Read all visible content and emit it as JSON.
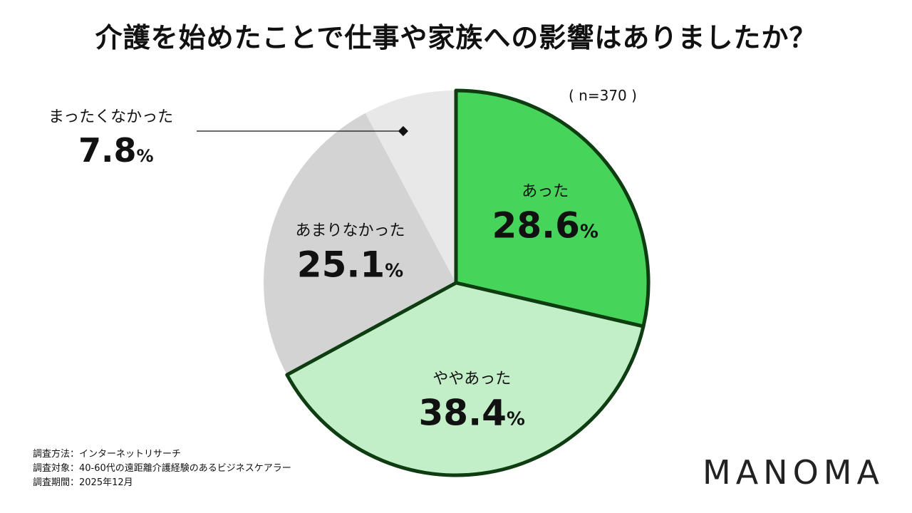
{
  "title": "介護を始めたことで仕事や家族への影響はありましたか？",
  "sample": "( n=370 )",
  "percent_unit": "%",
  "colors": {
    "atta": "#46d45a",
    "yaya": "#c2efc7",
    "amari": "#d3d3d3",
    "mattaku": "#e8e8e8",
    "outline": "#0f3d12"
  },
  "chart_data": {
    "type": "pie",
    "title": "介護を始めたことで仕事や家族への影響はありましたか？",
    "slices": [
      {
        "label": "あった",
        "value": 28.6,
        "display": "28.6"
      },
      {
        "label": "ややあった",
        "value": 38.4,
        "display": "38.4"
      },
      {
        "label": "あまりなかった",
        "value": 25.1,
        "display": "25.1"
      },
      {
        "label": "まったくなかった",
        "value": 7.8,
        "display": "7.8"
      }
    ]
  },
  "footer": {
    "method": "調査方法：インターネットリサーチ",
    "target": "調査対象：40-60代の遠距離介護経験のあるビジネスケアラー",
    "period": "調査期間：2025年12月"
  },
  "brand": "MANOMA"
}
